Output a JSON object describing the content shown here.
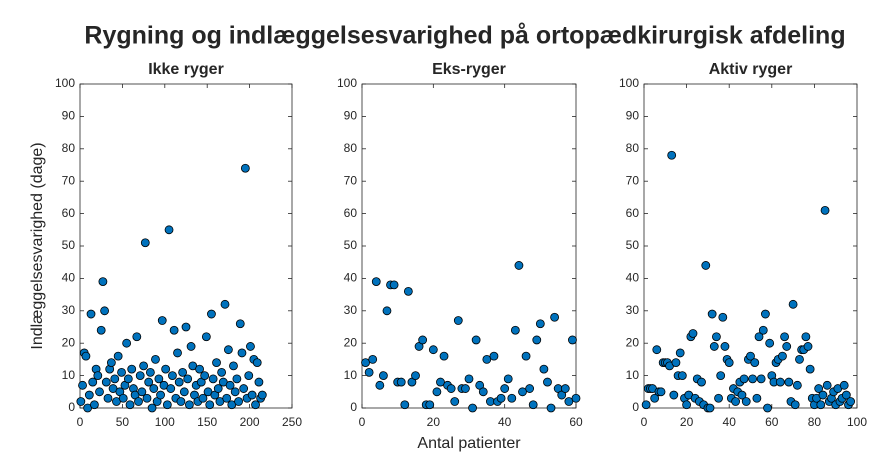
{
  "title": "Rygning og indlæggelsesvarighed på ortopædkirurgisk afdeling",
  "chart_data": [
    {
      "type": "scatter",
      "title": "Ikke ryger",
      "ylabel": "Indlæggelsesvarighed (dage)",
      "color": "#0072bd",
      "xlim": [
        0,
        250
      ],
      "xticks": [
        0,
        50,
        100,
        150,
        200,
        250
      ],
      "ylim": [
        0,
        100
      ],
      "yticks": [
        0,
        10,
        20,
        30,
        40,
        50,
        60,
        70,
        80,
        90,
        100
      ],
      "x": [
        1,
        3,
        5,
        7,
        9,
        11,
        13,
        15,
        17,
        19,
        21,
        23,
        25,
        27,
        29,
        31,
        33,
        35,
        37,
        39,
        41,
        43,
        45,
        47,
        49,
        51,
        53,
        55,
        57,
        59,
        61,
        63,
        65,
        67,
        69,
        71,
        73,
        75,
        77,
        79,
        81,
        83,
        85,
        87,
        89,
        91,
        93,
        95,
        97,
        99,
        101,
        103,
        105,
        107,
        109,
        111,
        113,
        115,
        117,
        119,
        121,
        123,
        125,
        127,
        129,
        131,
        133,
        135,
        137,
        139,
        141,
        143,
        145,
        147,
        149,
        151,
        153,
        155,
        157,
        159,
        161,
        163,
        165,
        167,
        169,
        171,
        173,
        175,
        177,
        179,
        181,
        183,
        185,
        187,
        189,
        191,
        193,
        195,
        197,
        199,
        201,
        203,
        205,
        207,
        209,
        211,
        213,
        215
      ],
      "y": [
        2,
        7,
        17,
        16,
        0,
        4,
        29,
        8,
        1,
        12,
        10,
        5,
        24,
        39,
        30,
        8,
        3,
        12,
        14,
        6,
        9,
        2,
        16,
        5,
        11,
        3,
        7,
        20,
        9,
        1,
        12,
        6,
        4,
        22,
        2,
        10,
        5,
        13,
        51,
        3,
        8,
        11,
        0,
        6,
        15,
        2,
        9,
        4,
        27,
        7,
        12,
        1,
        55,
        6,
        10,
        24,
        3,
        17,
        8,
        2,
        11,
        5,
        25,
        9,
        1,
        19,
        13,
        4,
        7,
        2,
        12,
        8,
        3,
        10,
        22,
        5,
        1,
        29,
        9,
        4,
        14,
        6,
        2,
        11,
        8,
        32,
        3,
        18,
        7,
        1,
        13,
        5,
        9,
        2,
        26,
        17,
        6,
        74,
        3,
        10,
        19,
        4,
        15,
        1,
        14,
        8,
        3,
        4
      ]
    },
    {
      "type": "scatter",
      "title": "Eks-ryger",
      "xlabel": "Antal patienter",
      "color": "#0072bd",
      "xlim": [
        0,
        60
      ],
      "xticks": [
        0,
        20,
        40,
        60
      ],
      "ylim": [
        0,
        100
      ],
      "yticks": [
        0,
        10,
        20,
        30,
        40,
        50,
        60,
        70,
        80,
        90,
        100
      ],
      "x": [
        1,
        2,
        3,
        4,
        5,
        6,
        7,
        8,
        9,
        10,
        11,
        12,
        13,
        14,
        15,
        16,
        17,
        18,
        19,
        20,
        21,
        22,
        23,
        24,
        25,
        26,
        27,
        28,
        29,
        30,
        31,
        32,
        33,
        34,
        35,
        36,
        37,
        38,
        39,
        40,
        41,
        42,
        43,
        44,
        45,
        46,
        47,
        48,
        49,
        50,
        51,
        52,
        53,
        54,
        55,
        56,
        57,
        58,
        59,
        60
      ],
      "y": [
        14,
        11,
        15,
        39,
        7,
        10,
        30,
        38,
        38,
        8,
        8,
        1,
        36,
        8,
        10,
        19,
        21,
        1,
        1,
        18,
        5,
        8,
        16,
        7,
        6,
        2,
        27,
        6,
        6,
        9,
        0,
        21,
        7,
        5,
        15,
        2,
        16,
        2,
        3,
        6,
        9,
        3,
        24,
        44,
        5,
        16,
        6,
        1,
        21,
        26,
        12,
        8,
        0,
        28,
        6,
        4,
        6,
        2,
        21,
        3
      ]
    },
    {
      "type": "scatter",
      "title": "Aktiv ryger",
      "color": "#0072bd",
      "xlim": [
        0,
        100
      ],
      "xticks": [
        0,
        20,
        40,
        60,
        80,
        100
      ],
      "ylim": [
        0,
        100
      ],
      "yticks": [
        0,
        10,
        20,
        30,
        40,
        50,
        60,
        70,
        80,
        90,
        100
      ],
      "x": [
        1,
        2,
        3,
        4,
        5,
        6,
        7,
        8,
        9,
        10,
        11,
        12,
        13,
        14,
        15,
        16,
        17,
        18,
        19,
        20,
        21,
        22,
        23,
        24,
        25,
        26,
        27,
        28,
        29,
        30,
        31,
        32,
        33,
        34,
        35,
        36,
        37,
        38,
        39,
        40,
        41,
        42,
        43,
        44,
        45,
        46,
        47,
        48,
        49,
        50,
        51,
        52,
        53,
        54,
        55,
        56,
        57,
        58,
        59,
        60,
        61,
        62,
        63,
        64,
        65,
        66,
        67,
        68,
        69,
        70,
        71,
        72,
        73,
        74,
        75,
        76,
        77,
        78,
        79,
        80,
        81,
        82,
        83,
        84,
        85,
        86,
        87,
        88,
        89,
        90,
        91,
        92,
        93,
        94,
        95,
        96,
        97
      ],
      "y": [
        1,
        6,
        6,
        6,
        3,
        18,
        5,
        5,
        14,
        14,
        14,
        13,
        78,
        4,
        14,
        10,
        17,
        10,
        3,
        1,
        4,
        22,
        23,
        3,
        9,
        2,
        8,
        1,
        44,
        0,
        0,
        29,
        19,
        22,
        3,
        10,
        28,
        19,
        15,
        14,
        3,
        6,
        2,
        5,
        8,
        4,
        9,
        2,
        15,
        16,
        9,
        14,
        3,
        22,
        9,
        24,
        29,
        0,
        20,
        10,
        8,
        14,
        15,
        8,
        16,
        22,
        19,
        8,
        2,
        32,
        1,
        7,
        15,
        18,
        18,
        22,
        19,
        12,
        3,
        1,
        3,
        6,
        1,
        4,
        61,
        7,
        2,
        3,
        5,
        1,
        6,
        2,
        3,
        7,
        4,
        1,
        2
      ]
    }
  ]
}
